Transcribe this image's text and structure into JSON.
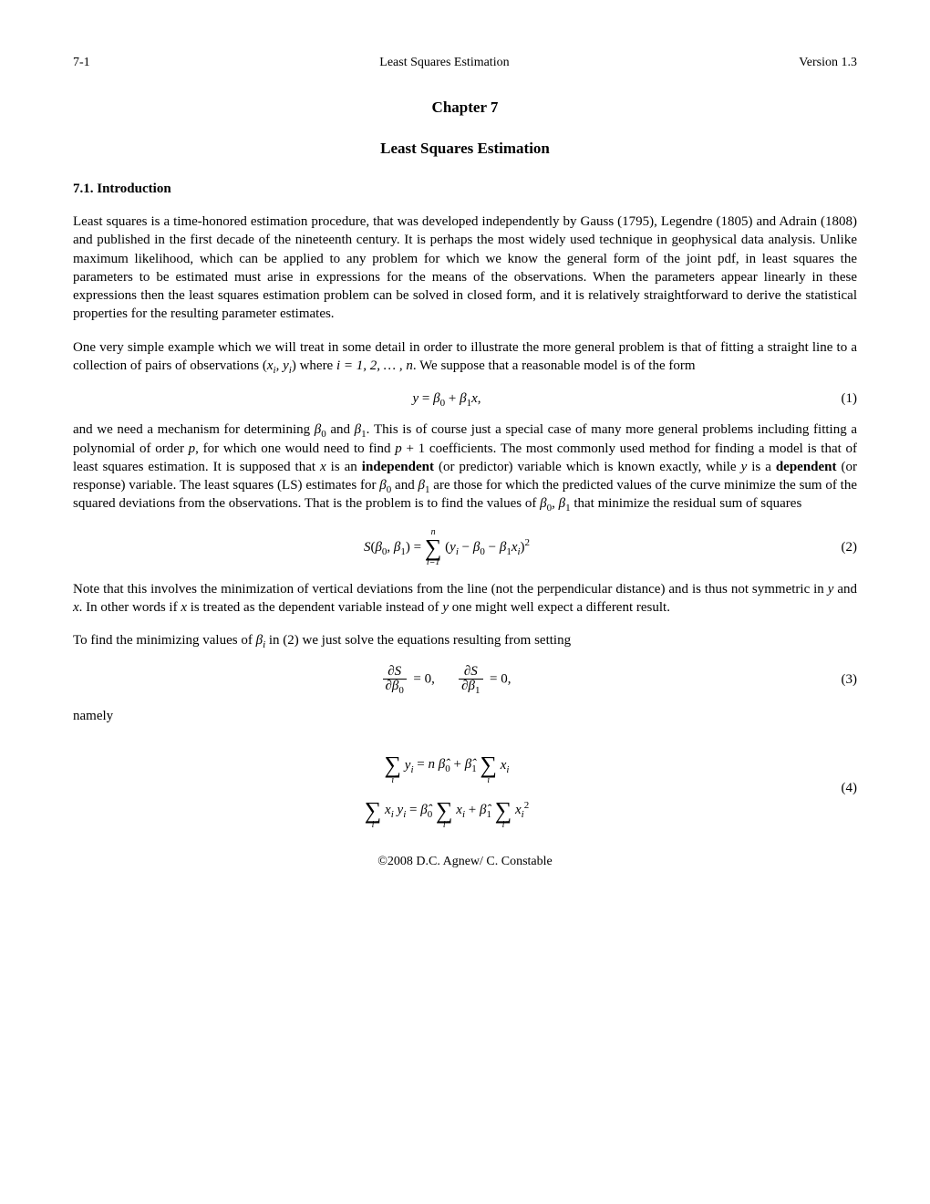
{
  "header": {
    "page_label": "7-1",
    "running_title": "Least Squares Estimation",
    "version": "Version 1.3"
  },
  "chapter_label": "Chapter 7",
  "title": "Least Squares Estimation",
  "section": "7.1. Introduction",
  "para1": "Least squares is a time-honored estimation procedure, that was developed independently by Gauss (1795), Legendre (1805) and Adrain (1808) and published in the first decade of the nineteenth century. It is perhaps the most widely used technique in geophysical data analysis. Unlike maximum likelihood, which can be applied to any problem for which we know the general form of the joint pdf, in least squares the parameters to be estimated must arise in expressions for the means of the observations. When the parameters appear linearly in these expressions then the least squares estimation problem can be solved in closed form, and it is relatively straightforward to derive the statistical properties for the resulting parameter estimates.",
  "para2_a": "One very simple example which we will treat in some detail in order to illustrate the more general problem is that of fitting a straight line to a collection of pairs of observations (",
  "para2_b": ") where ",
  "para2_c": ". We suppose that a reasonable model is of the form",
  "eq1_num": "(1)",
  "para3_a": "and we need a mechanism for determining ",
  "para3_b": " and ",
  "para3_c": ". This is of course just a special case of many more general problems including fitting a polynomial of order ",
  "para3_d": ", for which one would need to find ",
  "para3_e": " coefficients. The most commonly used method for finding a model is that of least squares estimation. It is supposed that ",
  "para3_f": " is an ",
  "para3_g": "independent",
  "para3_h": " (or predictor) variable which is known exactly, while ",
  "para3_i": " is a ",
  "para3_j": "dependent",
  "para3_k": " (or response) variable. The least squares (LS) estimates for ",
  "para3_l": " and ",
  "para3_m": " are those for which the predicted values of the curve minimize the sum of the squared deviations from the observations. That is the problem is to find the values of ",
  "para3_n": ", ",
  "para3_o": " that minimize the residual sum of squares",
  "eq2_num": "(2)",
  "para4_a": "Note that this involves the minimization of vertical deviations from the line (not the perpendicular distance) and is thus not symmetric in ",
  "para4_b": " and ",
  "para4_c": ". In other words if ",
  "para4_d": " is treated as the dependent variable instead of ",
  "para4_e": " one might well expect a different result.",
  "para5_a": "To find the minimizing values of ",
  "para5_b": " in (2) we just solve the equations resulting from setting",
  "eq3_num": "(3)",
  "para6": "namely",
  "eq4_num": "(4)",
  "footer": "©2008 D.C. Agnew/ C. Constable",
  "sym": {
    "xi_yi": "x_i, y_i",
    "i_range": "i = 1, 2, …, n",
    "beta0": "β₀",
    "beta1": "β₁",
    "p": "p",
    "p1": "p + 1",
    "x": "x",
    "y": "y"
  }
}
